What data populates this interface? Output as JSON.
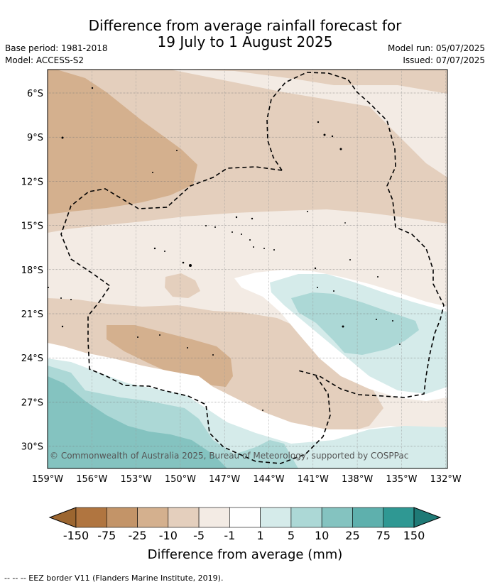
{
  "title": {
    "line1": "Difference from average rainfall forecast for",
    "line2": "19 July to 1 August 2025"
  },
  "meta": {
    "base_period": "Base period: 1981-2018",
    "model": "Model: ACCESS-S2",
    "model_run": "Model run: 05/07/2025",
    "issued": "Issued: 07/07/2025"
  },
  "map": {
    "lat_labels": [
      "6°S",
      "9°S",
      "12°S",
      "15°S",
      "18°S",
      "21°S",
      "24°S",
      "27°S",
      "30°S"
    ],
    "lon_labels": [
      "159°W",
      "156°W",
      "153°W",
      "150°W",
      "147°W",
      "144°W",
      "141°W",
      "138°W",
      "135°W",
      "132°W"
    ],
    "copyright": "© Commonwealth of Australia 2025, Bureau of Meteorology, supported by COSPPac"
  },
  "colorbar": {
    "labels": [
      "-150",
      "-75",
      "-25",
      "-10",
      "-5",
      "-1",
      "1",
      "5",
      "10",
      "25",
      "75",
      "150"
    ],
    "colors": [
      "#9c6630",
      "#b07540",
      "#c39468",
      "#d4b08e",
      "#e4cfbd",
      "#f3ebe4",
      "#ffffff",
      "#d5ebea",
      "#acd8d6",
      "#84c3c0",
      "#5eb0ad",
      "#2f9893",
      "#1f7a76"
    ],
    "title": "Difference from average (mm)"
  },
  "footer": "--  --  -- EEZ border V11 (Flanders Marine Institute, 2019)."
}
